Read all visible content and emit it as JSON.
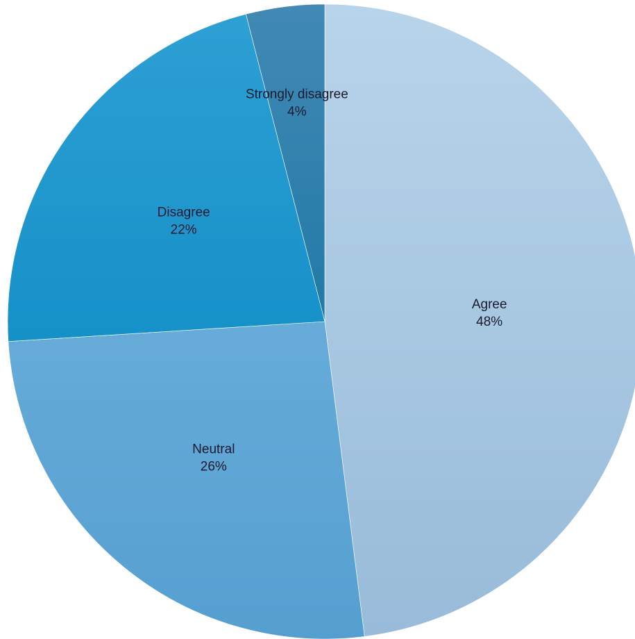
{
  "chart_data": {
    "type": "pie",
    "title": "",
    "categories": [
      "Agree",
      "Neutral",
      "Disagree",
      "Strongly disagree"
    ],
    "values": [
      48,
      26,
      22,
      4
    ],
    "value_labels": [
      "48%",
      "26%",
      "22%",
      "4%"
    ],
    "start_angle_deg": 0,
    "direction": "clockwise",
    "legend": "none",
    "colors": [
      [
        "#b8d4ea",
        "#98bbd9"
      ],
      [
        "#79b8e2",
        "#559fd0"
      ],
      [
        "#2ea0d4",
        "#0083be"
      ],
      [
        "#4289b5",
        "#006a98"
      ]
    ]
  }
}
